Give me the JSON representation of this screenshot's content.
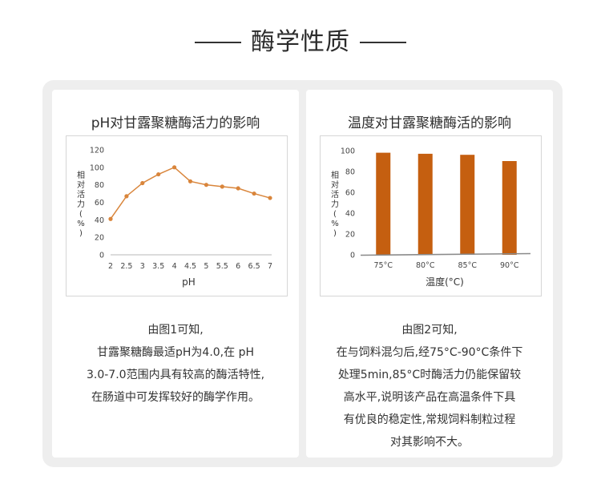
{
  "page_title": "酶学性质",
  "cards": [
    {
      "title": "pH对甘露聚糖酶活力的影响",
      "description": [
        "由图1可知,",
        "甘露聚糖酶最适pH为4.0,在 pH",
        "3.0-7.0范围内具有较高的酶活特性,",
        "在肠道中可发挥较好的酶学作用。"
      ]
    },
    {
      "title": "温度对甘露聚糖酶活的影响",
      "description": [
        "由图2可知,",
        "在与饲料混匀后,经75°C-90°C条件下",
        "处理5min,85°C时酶活力仍能保留较",
        "高水平,说明该产品在高温条件下具",
        "有优良的稳定性,常规饲料制粒过程",
        "对其影响不大。"
      ]
    }
  ],
  "chart_data": [
    {
      "type": "line",
      "title": "",
      "xlabel": "pH",
      "ylabel": "相对活力(%)",
      "x": [
        2,
        2.5,
        3,
        3.5,
        4,
        4.5,
        5,
        5.5,
        6,
        6.5,
        7
      ],
      "x_tick_labels": [
        "2",
        "2.5",
        "3",
        "3.5",
        "4",
        "4.5",
        "5",
        "5.5",
        "6",
        "6.5",
        "7"
      ],
      "values": [
        41,
        67,
        82,
        92,
        100,
        84,
        80,
        78,
        76,
        70,
        65
      ],
      "ylim": [
        0,
        120
      ],
      "y_ticks": [
        0,
        20,
        40,
        60,
        80,
        100,
        120
      ],
      "grid": false,
      "color": "#d9853b"
    },
    {
      "type": "bar",
      "title": "",
      "xlabel": "温度(°C)",
      "ylabel": "相对活力(%)",
      "categories": [
        "75°C",
        "80°C",
        "85°C",
        "90°C"
      ],
      "values": [
        98,
        97,
        96,
        90
      ],
      "ylim": [
        0,
        100
      ],
      "y_ticks": [
        0,
        20,
        40,
        60,
        80,
        100
      ],
      "grid": false,
      "color": "#c55f10"
    }
  ]
}
